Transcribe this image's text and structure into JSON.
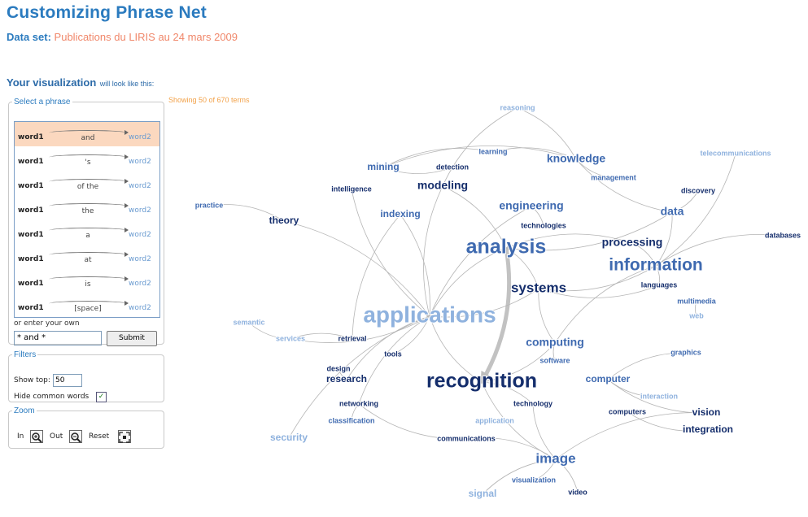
{
  "page": {
    "title": "Customizing Phrase Net",
    "dataset_label": "Data set:",
    "dataset_value": "Publications du LIRIS au 24 mars 2009",
    "vis_heading": "Your visualization",
    "vis_heading_small": "will look like this:",
    "showing": "Showing 50 of 670 terms"
  },
  "phrase_panel": {
    "legend": "Select a phrase",
    "phrases": [
      {
        "word1": "word1",
        "middle": "and",
        "word2": "word2",
        "selected": true
      },
      {
        "word1": "word1",
        "middle": "'s",
        "word2": "word2",
        "selected": false
      },
      {
        "word1": "word1",
        "middle": "of the",
        "word2": "word2",
        "selected": false
      },
      {
        "word1": "word1",
        "middle": "the",
        "word2": "word2",
        "selected": false
      },
      {
        "word1": "word1",
        "middle": "a",
        "word2": "word2",
        "selected": false
      },
      {
        "word1": "word1",
        "middle": "at",
        "word2": "word2",
        "selected": false
      },
      {
        "word1": "word1",
        "middle": "is",
        "word2": "word2",
        "selected": false
      },
      {
        "word1": "word1",
        "middle": "[space]",
        "word2": "word2",
        "selected": false
      }
    ],
    "own_label": "or enter your own",
    "own_value": "* and *",
    "submit_label": "Submit"
  },
  "filters": {
    "legend": "Filters",
    "show_top_label": "Show top:",
    "show_top_value": "50",
    "hide_label": "Hide common words",
    "hide_checked": true
  },
  "zoom": {
    "legend": "Zoom",
    "in_label": "In",
    "out_label": "Out",
    "reset_label": "Reset"
  },
  "colors": {
    "dark": "#152e6c",
    "mid": "#3f6ab0",
    "light": "#8fb2de",
    "title": "#2b7bbf",
    "dataset": "#f0876a",
    "showing": "#f2a24a"
  },
  "terms": [
    {
      "id": "reasoning",
      "text": "reasoning",
      "tone": "light",
      "weight": 1
    },
    {
      "id": "learning",
      "text": "learning",
      "tone": "mid",
      "weight": 1
    },
    {
      "id": "knowledge",
      "text": "knowledge",
      "tone": "mid",
      "weight": 3
    },
    {
      "id": "telecommunications",
      "text": "telecommunications",
      "tone": "light",
      "weight": 1
    },
    {
      "id": "mining",
      "text": "mining",
      "tone": "mid",
      "weight": 2
    },
    {
      "id": "detection",
      "text": "detection",
      "tone": "dark",
      "weight": 1
    },
    {
      "id": "management",
      "text": "management",
      "tone": "mid",
      "weight": 1
    },
    {
      "id": "discovery",
      "text": "discovery",
      "tone": "dark",
      "weight": 1
    },
    {
      "id": "intelligence",
      "text": "intelligence",
      "tone": "dark",
      "weight": 1
    },
    {
      "id": "modeling",
      "text": "modeling",
      "tone": "dark",
      "weight": 3
    },
    {
      "id": "engineering",
      "text": "engineering",
      "tone": "mid",
      "weight": 3
    },
    {
      "id": "practice",
      "text": "practice",
      "tone": "mid",
      "weight": 1
    },
    {
      "id": "indexing",
      "text": "indexing",
      "tone": "mid",
      "weight": 2
    },
    {
      "id": "data",
      "text": "data",
      "tone": "mid",
      "weight": 3
    },
    {
      "id": "theory",
      "text": "theory",
      "tone": "dark",
      "weight": 2
    },
    {
      "id": "technologies",
      "text": "technologies",
      "tone": "dark",
      "weight": 1
    },
    {
      "id": "databases",
      "text": "databases",
      "tone": "dark",
      "weight": 1
    },
    {
      "id": "analysis",
      "text": "analysis",
      "tone": "mid",
      "weight": 6
    },
    {
      "id": "processing",
      "text": "processing",
      "tone": "dark",
      "weight": 3
    },
    {
      "id": "information",
      "text": "information",
      "tone": "mid",
      "weight": 5
    },
    {
      "id": "languages",
      "text": "languages",
      "tone": "dark",
      "weight": 1
    },
    {
      "id": "systems",
      "text": "systems",
      "tone": "dark",
      "weight": 4
    },
    {
      "id": "multimedia",
      "text": "multimedia",
      "tone": "mid",
      "weight": 1
    },
    {
      "id": "applications",
      "text": "applications",
      "tone": "light",
      "weight": 7
    },
    {
      "id": "web",
      "text": "web",
      "tone": "light",
      "weight": 1
    },
    {
      "id": "semantic",
      "text": "semantic",
      "tone": "light",
      "weight": 1
    },
    {
      "id": "services",
      "text": "services",
      "tone": "light",
      "weight": 1
    },
    {
      "id": "retrieval",
      "text": "retrieval",
      "tone": "dark",
      "weight": 1
    },
    {
      "id": "computing",
      "text": "computing",
      "tone": "mid",
      "weight": 3
    },
    {
      "id": "graphics",
      "text": "graphics",
      "tone": "mid",
      "weight": 1
    },
    {
      "id": "tools",
      "text": "tools",
      "tone": "dark",
      "weight": 1
    },
    {
      "id": "software",
      "text": "software",
      "tone": "mid",
      "weight": 1
    },
    {
      "id": "design",
      "text": "design",
      "tone": "dark",
      "weight": 1
    },
    {
      "id": "research",
      "text": "research",
      "tone": "dark",
      "weight": 2
    },
    {
      "id": "recognition",
      "text": "recognition",
      "tone": "dark",
      "weight": 6
    },
    {
      "id": "computer",
      "text": "computer",
      "tone": "mid",
      "weight": 2
    },
    {
      "id": "interaction",
      "text": "interaction",
      "tone": "light",
      "weight": 1
    },
    {
      "id": "networking",
      "text": "networking",
      "tone": "dark",
      "weight": 1
    },
    {
      "id": "technology",
      "text": "technology",
      "tone": "dark",
      "weight": 1
    },
    {
      "id": "computers",
      "text": "computers",
      "tone": "dark",
      "weight": 1
    },
    {
      "id": "vision",
      "text": "vision",
      "tone": "dark",
      "weight": 2
    },
    {
      "id": "classification",
      "text": "classification",
      "tone": "mid",
      "weight": 1
    },
    {
      "id": "application",
      "text": "application",
      "tone": "light",
      "weight": 1
    },
    {
      "id": "integration",
      "text": "integration",
      "tone": "dark",
      "weight": 2
    },
    {
      "id": "security",
      "text": "security",
      "tone": "light",
      "weight": 2
    },
    {
      "id": "communications",
      "text": "communications",
      "tone": "dark",
      "weight": 1
    },
    {
      "id": "image",
      "text": "image",
      "tone": "mid",
      "weight": 4
    },
    {
      "id": "visualization",
      "text": "visualization",
      "tone": "mid",
      "weight": 1
    },
    {
      "id": "signal",
      "text": "signal",
      "tone": "light",
      "weight": 2
    },
    {
      "id": "video",
      "text": "video",
      "tone": "dark",
      "weight": 1
    }
  ],
  "edges": [
    [
      "analysis",
      "recognition",
      3
    ],
    [
      "analysis",
      "applications",
      1
    ],
    [
      "analysis",
      "systems",
      1
    ],
    [
      "analysis",
      "modeling",
      1
    ],
    [
      "processing",
      "information",
      1
    ],
    [
      "processing",
      "analysis",
      1
    ],
    [
      "information",
      "systems",
      1
    ],
    [
      "information",
      "data",
      1
    ],
    [
      "data",
      "knowledge",
      1
    ],
    [
      "knowledge",
      "management",
      1
    ],
    [
      "mining",
      "knowledge",
      1
    ],
    [
      "mining",
      "detection",
      1
    ],
    [
      "learning",
      "knowledge",
      1
    ],
    [
      "learning",
      "mining",
      1
    ],
    [
      "reasoning",
      "knowledge",
      1
    ],
    [
      "reasoning",
      "modeling",
      1
    ],
    [
      "telecommunications",
      "information",
      1
    ],
    [
      "databases",
      "information",
      1
    ],
    [
      "discovery",
      "data",
      1
    ],
    [
      "theory",
      "practice",
      1
    ],
    [
      "theory",
      "applications",
      1
    ],
    [
      "modeling",
      "applications",
      1
    ],
    [
      "indexing",
      "applications",
      1
    ],
    [
      "indexing",
      "retrieval",
      1
    ],
    [
      "engineering",
      "technologies",
      1
    ],
    [
      "engineering",
      "applications",
      1
    ],
    [
      "systems",
      "applications",
      1
    ],
    [
      "systems",
      "computing",
      1
    ],
    [
      "applications",
      "services",
      1
    ],
    [
      "applications",
      "security",
      1
    ],
    [
      "applications",
      "tools",
      1
    ],
    [
      "applications",
      "networking",
      1
    ],
    [
      "research",
      "applications",
      1
    ],
    [
      "design",
      "research",
      1
    ],
    [
      "recognition",
      "applications",
      1
    ],
    [
      "recognition",
      "image",
      1
    ],
    [
      "recognition",
      "technology",
      1
    ],
    [
      "computing",
      "software",
      1
    ],
    [
      "computing",
      "recognition",
      1
    ],
    [
      "computer",
      "vision",
      1
    ],
    [
      "computer",
      "graphics",
      1
    ],
    [
      "computer",
      "interaction",
      1
    ],
    [
      "image",
      "video",
      1
    ],
    [
      "image",
      "signal",
      1
    ],
    [
      "image",
      "visualization",
      1
    ],
    [
      "image",
      "communications",
      1
    ],
    [
      "communications",
      "networking",
      1
    ],
    [
      "networking",
      "classification",
      1
    ],
    [
      "signal",
      "image",
      1
    ],
    [
      "vision",
      "image",
      1
    ],
    [
      "integration",
      "computers",
      1
    ],
    [
      "multimedia",
      "web",
      1
    ],
    [
      "languages",
      "systems",
      1
    ],
    [
      "semantic",
      "services",
      1
    ],
    [
      "services",
      "retrieval",
      1
    ],
    [
      "intelligence",
      "applications",
      1
    ],
    [
      "information",
      "languages",
      1
    ],
    [
      "information",
      "computing",
      1
    ],
    [
      "data",
      "analysis",
      1
    ],
    [
      "technology",
      "image",
      1
    ]
  ]
}
